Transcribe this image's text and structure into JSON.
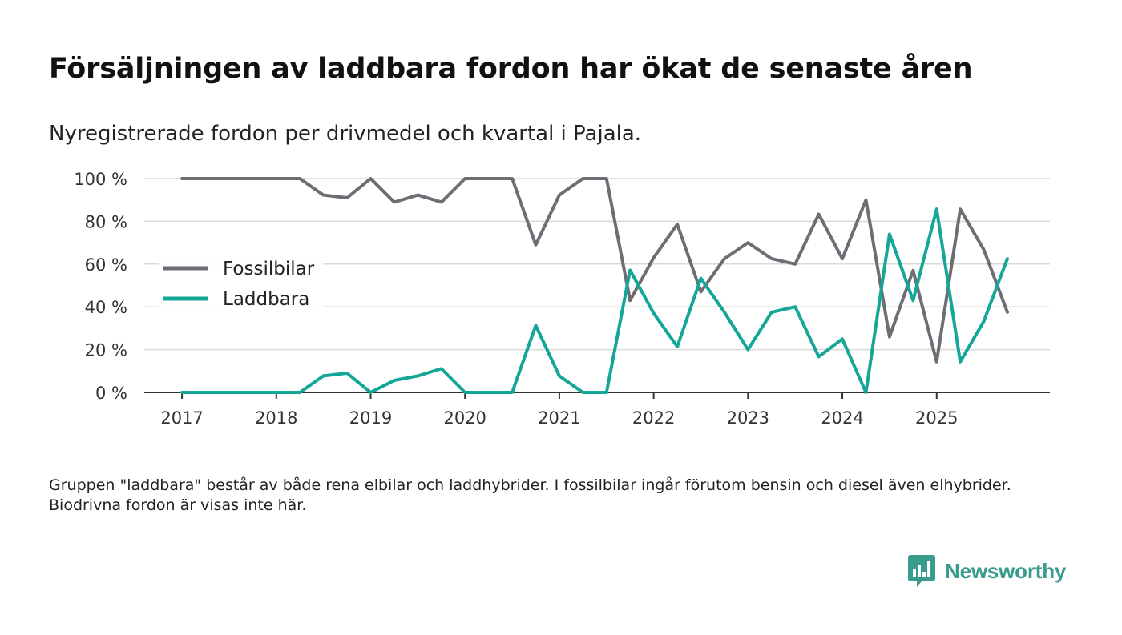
{
  "title": "Försäljningen av laddbara fordon har ökat de senaste åren",
  "subtitle": "Nyregistrerade fordon per drivmedel och kvartal i Pajala.",
  "footnote": "Gruppen \"laddbara\" består av både rena elbilar och laddhybrider. I fossilbilar ingår förutom bensin och diesel även elhybrider. Biodrivna fordon är visas inte här.",
  "brand": {
    "name": "Newsworthy",
    "color": "#3a9c8c",
    "icon": "bar-chart-speech-bubble-icon"
  },
  "chart_data": {
    "type": "line",
    "title": "Försäljningen av laddbara fordon har ökat de senaste åren",
    "xlabel": "",
    "ylabel": "",
    "x": [
      2017.0,
      2017.25,
      2017.5,
      2017.75,
      2018.0,
      2018.25,
      2018.5,
      2018.75,
      2019.0,
      2019.25,
      2019.5,
      2019.75,
      2020.0,
      2020.25,
      2020.5,
      2020.75,
      2021.0,
      2021.25,
      2021.5,
      2021.75,
      2022.0,
      2022.25,
      2022.5,
      2022.75,
      2023.0,
      2023.25,
      2023.5,
      2023.75,
      2024.0,
      2024.25,
      2024.5,
      2024.75,
      2025.0,
      2025.25,
      2025.5,
      2025.75
    ],
    "xlim": [
      2016.6,
      2026.2
    ],
    "ylim": [
      0,
      100
    ],
    "x_ticks": [
      2017,
      2018,
      2019,
      2020,
      2021,
      2022,
      2023,
      2024,
      2025
    ],
    "x_tick_labels": [
      "2017",
      "2018",
      "2019",
      "2020",
      "2021",
      "2022",
      "2023",
      "2024",
      "2025"
    ],
    "y_ticks": [
      0,
      20,
      40,
      60,
      80,
      100
    ],
    "y_tick_labels": [
      "0 %",
      "20 %",
      "40 %",
      "60 %",
      "80 %",
      "100 %"
    ],
    "grid": true,
    "legend_position": "left",
    "series": [
      {
        "name": "Fossilbilar",
        "color": "#6e6d74",
        "values": [
          100,
          100,
          100,
          100,
          100,
          100,
          92.3,
          91,
          100,
          89,
          92.3,
          89,
          100,
          100,
          100,
          69,
          92.3,
          100,
          100,
          43,
          63,
          78.6,
          47,
          62.5,
          70,
          62.5,
          60,
          83.3,
          62.5,
          90,
          26,
          57,
          14.3,
          85.7,
          66.7,
          37.5
        ]
      },
      {
        "name": "Laddbara",
        "color": "#14a697",
        "values": [
          0,
          0,
          0,
          0,
          0,
          0,
          7.7,
          9,
          0,
          5.6,
          7.7,
          11.1,
          0,
          0,
          0,
          31.3,
          7.7,
          0,
          0,
          57.1,
          37,
          21.4,
          53.3,
          37.5,
          20,
          37.5,
          40,
          16.7,
          25,
          0,
          74,
          43,
          85.7,
          14.3,
          33.3,
          62.5
        ]
      }
    ]
  }
}
